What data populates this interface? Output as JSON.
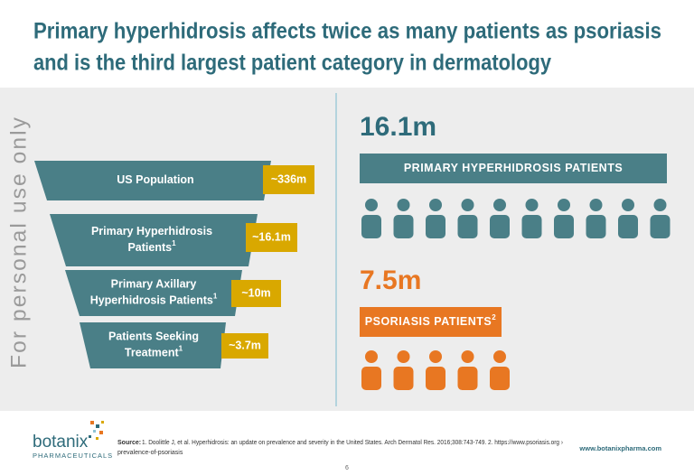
{
  "header": {
    "title_lines": [
      "Primary hyperhidrosis affects twice as many patients as psoriasis",
      "and is the third largest patient category in dermatology"
    ]
  },
  "watermark": "For personal use only",
  "funnel": {
    "rows": [
      {
        "label_lines": [
          "US Population"
        ],
        "value": "~336m"
      },
      {
        "label_lines": [
          "Primary Hyperhidrosis",
          "Patients"
        ],
        "sup": "1",
        "value": "~16.1m"
      },
      {
        "label_lines": [
          "Primary Axillary",
          "Hyperhidrosis Patients"
        ],
        "sup": "1",
        "value": "~10m"
      },
      {
        "label_lines": [
          "Patients Seeking",
          "Treatment"
        ],
        "sup": "1",
        "value": "~3.7m"
      }
    ]
  },
  "comparison": [
    {
      "figure": "16.1m",
      "label": "PRIMARY HYPERHIDROSIS PATIENTS"
    },
    {
      "figure": "7.5m",
      "label": "PSORIASIS PATIENTS",
      "sup": "2"
    }
  ],
  "footer": {
    "logo": {
      "name": "botanix",
      "tagline": "PHARMACEUTICALS"
    },
    "source": {
      "label": "Source:",
      "lines": [
        "1. Doolittle J, et al. Hyperhidrosis: an update on prevalence and severity in the United States. Arch Dermatol Res. 2016;308:743-749. 2. https://www.psoriasis.org ›",
        "prevalence-of-psoriasis"
      ]
    },
    "website": "www.botanixpharma.com",
    "page": "6"
  }
}
